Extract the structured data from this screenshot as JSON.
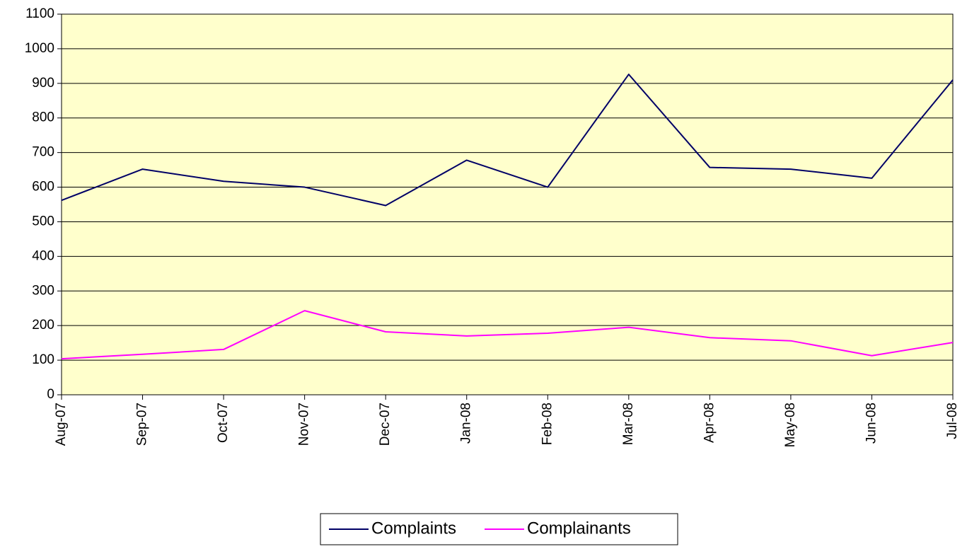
{
  "chart_data": {
    "type": "line",
    "categories": [
      "Aug-07",
      "Sep-07",
      "Oct-07",
      "Nov-07",
      "Dec-07",
      "Jan-08",
      "Feb-08",
      "Mar-08",
      "Apr-08",
      "May-08",
      "Jun-08",
      "Jul-08"
    ],
    "series": [
      {
        "name": "Complaints",
        "color": "#000066",
        "values": [
          562,
          652,
          617,
          600,
          547,
          678,
          600,
          926,
          657,
          652,
          626,
          910
        ]
      },
      {
        "name": "Complainants",
        "color": "#ff00ff",
        "values": [
          104,
          117,
          131,
          243,
          182,
          170,
          178,
          195,
          165,
          156,
          113,
          151
        ]
      }
    ],
    "ylim": [
      0,
      1100
    ],
    "yticks": [
      0,
      100,
      200,
      300,
      400,
      500,
      600,
      700,
      800,
      900,
      1000,
      1100
    ],
    "grid": true,
    "plot_background": "#ffffcc",
    "legend_position": "bottom-center"
  }
}
